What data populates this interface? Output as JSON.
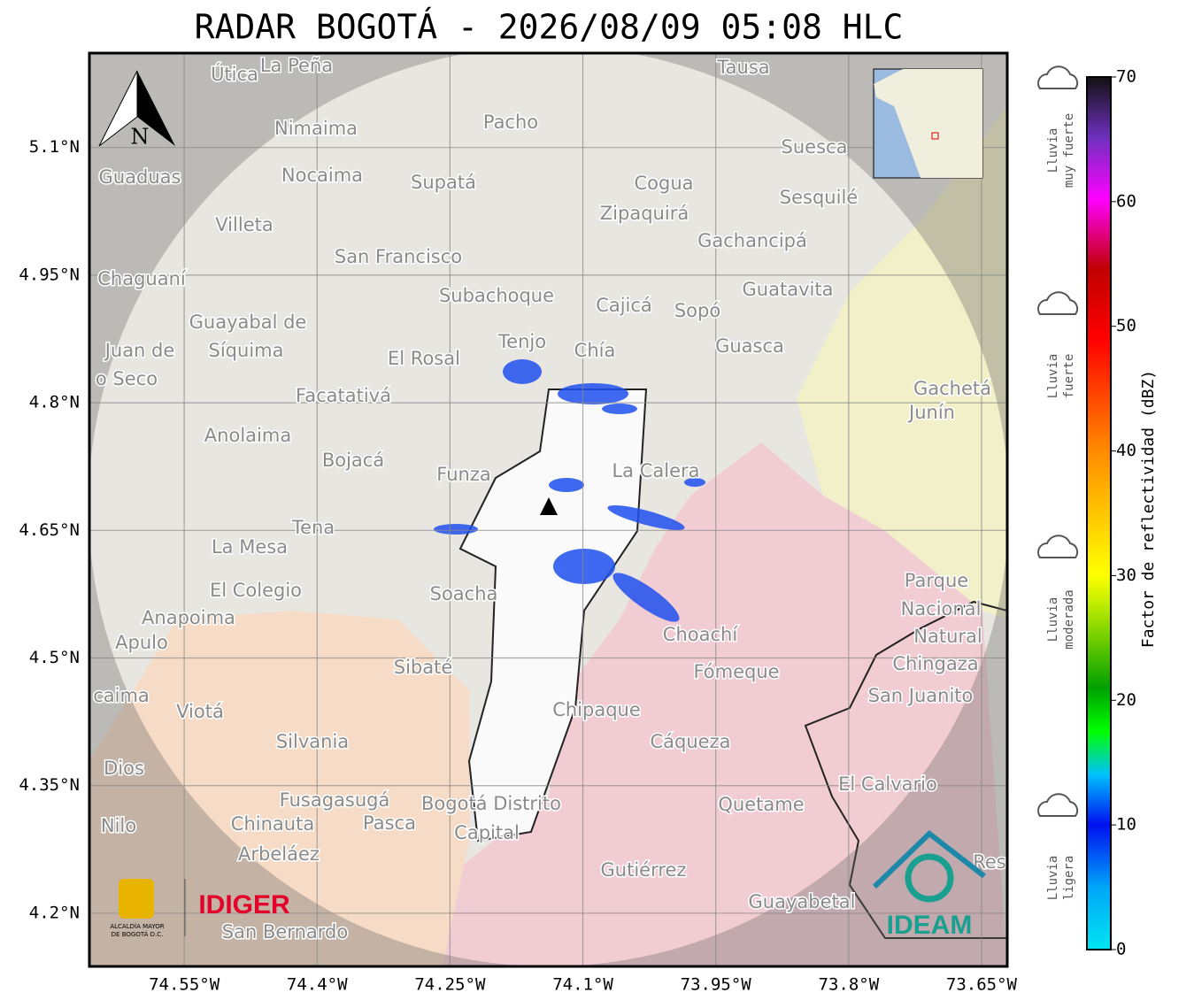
{
  "map": {
    "title": "RADAR BOGOTÁ - 2026/08/09 05:08 HLC",
    "lon_range": [
      -74.657,
      -73.621
    ],
    "lat_range": [
      4.1375,
      5.211
    ],
    "lon_ticks": [
      {
        "value": -74.55,
        "label": "74.55°W"
      },
      {
        "value": -74.4,
        "label": "74.4°W"
      },
      {
        "value": -74.25,
        "label": "74.25°W"
      },
      {
        "value": -74.1,
        "label": "74.1°W"
      },
      {
        "value": -73.95,
        "label": "73.95°W"
      },
      {
        "value": -73.8,
        "label": "73.8°W"
      },
      {
        "value": -73.65,
        "label": "73.65°W"
      }
    ],
    "lat_ticks": [
      {
        "value": 5.1,
        "label": "5.1°N"
      },
      {
        "value": 4.95,
        "label": "4.95°N"
      },
      {
        "value": 4.8,
        "label": "4.8°N"
      },
      {
        "value": 4.65,
        "label": "4.65°N"
      },
      {
        "value": 4.5,
        "label": "4.5°N"
      },
      {
        "value": 4.35,
        "label": "4.35°N"
      },
      {
        "value": 4.2,
        "label": "4.2°N"
      }
    ],
    "north_label": "N",
    "places": [
      "Útica",
      "La Peña",
      "Tausa",
      "Pacho",
      "Nimaima",
      "Suesca",
      "Guaduas",
      "Nocaima",
      "Supatá",
      "Cogua",
      "Sesquilé",
      "Zipaquirá",
      "Villeta",
      "Gachancipá",
      "San Francisco",
      "Chaguaní",
      "Guatavita",
      "Subachoque",
      "Cajicá",
      "Sopó",
      "Guayabal de",
      "Síquima",
      "Juan de",
      "Tenjo",
      "Chía",
      "Guasca",
      "El Rosal",
      "o Seco",
      "Gachetá",
      "Junín",
      "Facatativá",
      "Anolaima",
      "Bojacá",
      "Funza",
      "La Calera",
      "Tena",
      "La Mesa",
      "El Colegio",
      "Soacha",
      "Parque",
      "Nacional",
      "Natural",
      "Chingaza",
      "Anapoima",
      "Apulo",
      "Choachí",
      "Sibaté",
      "Fómeque",
      "San Juanito",
      "caima",
      "Viotá",
      "Chipaque",
      "Silvania",
      "Cáqueza",
      "Dios",
      "El Calvario",
      "Fusagasugá",
      "Quetame",
      "Bogotá Distrito",
      "Capital",
      "Nilo",
      "Chinauta",
      "Pasca",
      "Arbeláez",
      "Gutiérrez",
      "Guayabetal",
      "San Bernardo",
      "Res"
    ],
    "logos": {
      "alcaldia_1": "ALCALDÍA MAYOR",
      "alcaldia_2": "DE BOGOTÁ D.C.",
      "idiger": "IDIGER",
      "ideam": "IDEAM"
    },
    "colorbar": {
      "label": "Factor de reflectividad (dBZ)",
      "range": [
        0,
        70
      ],
      "ticks": [
        0,
        10,
        20,
        30,
        40,
        50,
        60,
        70
      ]
    },
    "legend": [
      {
        "lines": [
          "Lluvia",
          "muy fuerte"
        ]
      },
      {
        "lines": [
          "Lluvia",
          "fuerte"
        ]
      },
      {
        "lines": [
          "Lluvia",
          "moderada"
        ]
      },
      {
        "lines": [
          "Lluvia",
          "ligera"
        ]
      }
    ]
  }
}
